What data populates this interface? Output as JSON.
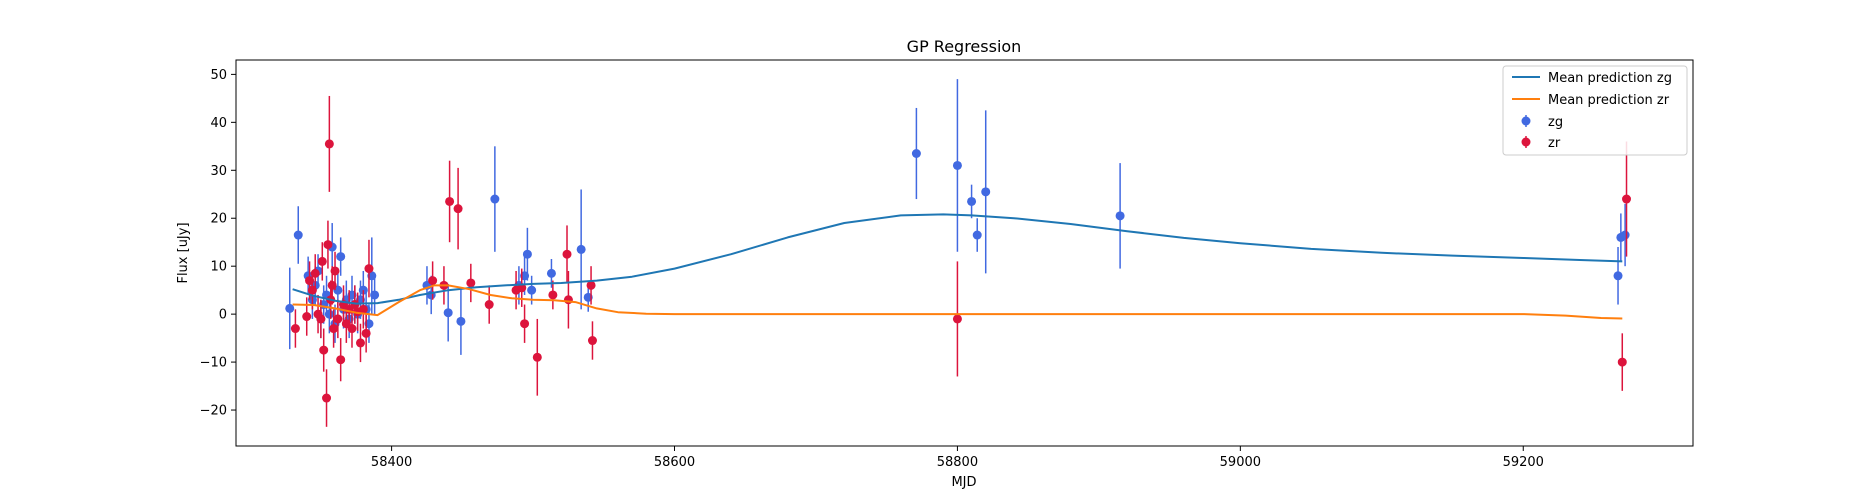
{
  "chart_data": {
    "type": "scatter",
    "title": "GP Regression",
    "xlabel": "MJD",
    "ylabel": "Flux [uJy]",
    "xlim": [
      58290,
      59320
    ],
    "ylim": [
      -27.5,
      53
    ],
    "xticks": [
      58400,
      58600,
      58800,
      59000,
      59200
    ],
    "yticks": [
      -20,
      -10,
      0,
      10,
      20,
      30,
      40,
      50
    ],
    "grid": false,
    "legend_position": "top-right",
    "colors": {
      "zg_points": "#4169e1",
      "zr_points": "#dc143c",
      "zg_line": "#1f77b4",
      "zr_line": "#ff7f0e"
    },
    "series": [
      {
        "name": "Mean prediction zg",
        "kind": "line",
        "color": "#1f77b4",
        "x": [
          58330,
          58345,
          58360,
          58375,
          58390,
          58405,
          58420,
          58440,
          58460,
          58480,
          58500,
          58520,
          58545,
          58570,
          58600,
          58640,
          58680,
          58720,
          58760,
          58790,
          58810,
          58840,
          58880,
          58920,
          58960,
          59000,
          59050,
          59100,
          59150,
          59200,
          59240,
          59270
        ],
        "y": [
          5.2,
          3.8,
          2.8,
          2.2,
          2.3,
          3.0,
          4.0,
          5.0,
          5.6,
          6.0,
          6.3,
          6.5,
          7.0,
          7.8,
          9.5,
          12.5,
          16.0,
          19.0,
          20.6,
          20.8,
          20.6,
          20.0,
          18.8,
          17.3,
          15.9,
          14.8,
          13.6,
          12.8,
          12.2,
          11.7,
          11.3,
          11.0
        ]
      },
      {
        "name": "Mean prediction zr",
        "kind": "line",
        "color": "#ff7f0e",
        "x": [
          58330,
          58345,
          58360,
          58375,
          58390,
          58405,
          58420,
          58430,
          58440,
          58455,
          58470,
          58485,
          58500,
          58515,
          58530,
          58545,
          58560,
          58580,
          58600,
          58700,
          58800,
          58900,
          59000,
          59100,
          59150,
          59200,
          59230,
          59255,
          59270
        ],
        "y": [
          2.0,
          1.9,
          1.2,
          0.3,
          -0.2,
          2.5,
          5.0,
          6.0,
          6.0,
          5.2,
          4.0,
          3.3,
          3.0,
          2.9,
          2.5,
          1.2,
          0.4,
          0.1,
          0.0,
          0.0,
          0.0,
          0.0,
          0.0,
          0.0,
          0.0,
          0.0,
          -0.3,
          -0.8,
          -0.9
        ]
      },
      {
        "name": "zg",
        "kind": "errorbar",
        "color": "#4169e1",
        "points": [
          {
            "x": 58328,
            "y": 1.2,
            "e": 8.5
          },
          {
            "x": 58334,
            "y": 16.5,
            "e": 6
          },
          {
            "x": 58341,
            "y": 8,
            "e": 4
          },
          {
            "x": 58344,
            "y": 3,
            "e": 4
          },
          {
            "x": 58346,
            "y": 6,
            "e": 4
          },
          {
            "x": 58348,
            "y": 9,
            "e": 3.5
          },
          {
            "x": 58350,
            "y": -1,
            "e": 4
          },
          {
            "x": 58352,
            "y": 2,
            "e": 4
          },
          {
            "x": 58354,
            "y": 4,
            "e": 4
          },
          {
            "x": 58356,
            "y": 0,
            "e": 4
          },
          {
            "x": 58358,
            "y": 14,
            "e": 5
          },
          {
            "x": 58360,
            "y": -2,
            "e": 4
          },
          {
            "x": 58362,
            "y": 5,
            "e": 4
          },
          {
            "x": 58364,
            "y": 12,
            "e": 4
          },
          {
            "x": 58366,
            "y": 1,
            "e": 4
          },
          {
            "x": 58368,
            "y": 3,
            "e": 4
          },
          {
            "x": 58370,
            "y": -1,
            "e": 4
          },
          {
            "x": 58372,
            "y": 4,
            "e": 4
          },
          {
            "x": 58374,
            "y": 2,
            "e": 4
          },
          {
            "x": 58376,
            "y": 0,
            "e": 4
          },
          {
            "x": 58378,
            "y": 3,
            "e": 4
          },
          {
            "x": 58380,
            "y": 5,
            "e": 4
          },
          {
            "x": 58382,
            "y": 1,
            "e": 4
          },
          {
            "x": 58384,
            "y": -2,
            "e": 4
          },
          {
            "x": 58386,
            "y": 8,
            "e": 8
          },
          {
            "x": 58388,
            "y": 4,
            "e": 4
          },
          {
            "x": 58425,
            "y": 6,
            "e": 4
          },
          {
            "x": 58428,
            "y": 4,
            "e": 4
          },
          {
            "x": 58440,
            "y": 0.3,
            "e": 6
          },
          {
            "x": 58449,
            "y": -1.5,
            "e": 7
          },
          {
            "x": 58473,
            "y": 24,
            "e": 11
          },
          {
            "x": 58490,
            "y": 6,
            "e": 4
          },
          {
            "x": 58494,
            "y": 8,
            "e": 4
          },
          {
            "x": 58496,
            "y": 12.5,
            "e": 5.5
          },
          {
            "x": 58499,
            "y": 5,
            "e": 3
          },
          {
            "x": 58513,
            "y": 8.5,
            "e": 3
          },
          {
            "x": 58534,
            "y": 13.5,
            "e": 12.5
          },
          {
            "x": 58539,
            "y": 3.5,
            "e": 3
          },
          {
            "x": 58771,
            "y": 33.5,
            "e": 9.5
          },
          {
            "x": 58800,
            "y": 31,
            "e": 18
          },
          {
            "x": 58810,
            "y": 23.5,
            "e": 3.5
          },
          {
            "x": 58814,
            "y": 16.5,
            "e": 3.5
          },
          {
            "x": 58820,
            "y": 25.5,
            "e": 17
          },
          {
            "x": 58915,
            "y": 20.5,
            "e": 11
          },
          {
            "x": 59267,
            "y": 8,
            "e": 6
          },
          {
            "x": 59269,
            "y": 16,
            "e": 5
          },
          {
            "x": 59272,
            "y": 16.5,
            "e": 6.5
          }
        ]
      },
      {
        "name": "zr",
        "kind": "errorbar",
        "color": "#dc143c",
        "points": [
          {
            "x": 58332,
            "y": -3,
            "e": 4
          },
          {
            "x": 58340,
            "y": -0.5,
            "e": 4
          },
          {
            "x": 58342,
            "y": 7,
            "e": 4
          },
          {
            "x": 58344,
            "y": 5,
            "e": 4
          },
          {
            "x": 58346,
            "y": 8.5,
            "e": 4
          },
          {
            "x": 58348,
            "y": 0,
            "e": 4
          },
          {
            "x": 58350,
            "y": -1,
            "e": 4
          },
          {
            "x": 58351,
            "y": 11,
            "e": 4
          },
          {
            "x": 58352,
            "y": -7.5,
            "e": 4.5
          },
          {
            "x": 58354,
            "y": -17.5,
            "e": 6
          },
          {
            "x": 58355,
            "y": 14.5,
            "e": 5
          },
          {
            "x": 58356,
            "y": 35.5,
            "e": 10
          },
          {
            "x": 58357,
            "y": 3,
            "e": 4
          },
          {
            "x": 58358,
            "y": 6,
            "e": 4
          },
          {
            "x": 58359,
            "y": -3,
            "e": 4
          },
          {
            "x": 58360,
            "y": 9,
            "e": 4
          },
          {
            "x": 58362,
            "y": -1,
            "e": 4
          },
          {
            "x": 58364,
            "y": -9.5,
            "e": 4.5
          },
          {
            "x": 58366,
            "y": 2,
            "e": 4
          },
          {
            "x": 58368,
            "y": -2,
            "e": 4
          },
          {
            "x": 58370,
            "y": 1,
            "e": 4
          },
          {
            "x": 58372,
            "y": -3,
            "e": 4
          },
          {
            "x": 58374,
            "y": 2,
            "e": 4
          },
          {
            "x": 58376,
            "y": 0.5,
            "e": 4
          },
          {
            "x": 58378,
            "y": -6,
            "e": 4
          },
          {
            "x": 58380,
            "y": 1,
            "e": 4
          },
          {
            "x": 58382,
            "y": -4,
            "e": 4
          },
          {
            "x": 58384,
            "y": 9.5,
            "e": 6
          },
          {
            "x": 58429,
            "y": 7,
            "e": 4
          },
          {
            "x": 58437,
            "y": 6,
            "e": 4
          },
          {
            "x": 58441,
            "y": 23.5,
            "e": 8.5
          },
          {
            "x": 58447,
            "y": 22,
            "e": 8.5
          },
          {
            "x": 58456,
            "y": 6.5,
            "e": 4
          },
          {
            "x": 58469,
            "y": 2,
            "e": 4
          },
          {
            "x": 58488,
            "y": 5,
            "e": 4
          },
          {
            "x": 58492,
            "y": 5.5,
            "e": 4
          },
          {
            "x": 58494,
            "y": -2,
            "e": 4
          },
          {
            "x": 58503,
            "y": -9,
            "e": 8
          },
          {
            "x": 58514,
            "y": 4,
            "e": 3
          },
          {
            "x": 58524,
            "y": 12.5,
            "e": 6
          },
          {
            "x": 58525,
            "y": 3,
            "e": 6
          },
          {
            "x": 58541,
            "y": 6,
            "e": 4
          },
          {
            "x": 58542,
            "y": -5.5,
            "e": 4
          },
          {
            "x": 58800,
            "y": -1,
            "e": 12
          },
          {
            "x": 59270,
            "y": -10,
            "e": 6
          },
          {
            "x": 59273,
            "y": 24,
            "e": 12
          }
        ]
      }
    ]
  }
}
